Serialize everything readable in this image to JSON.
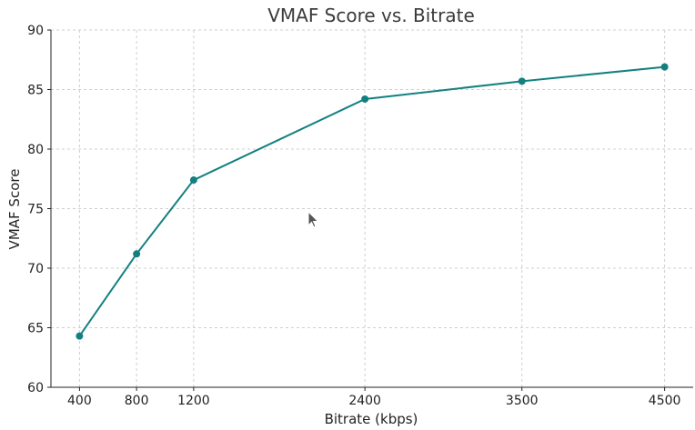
{
  "chart_data": {
    "type": "line",
    "title": "VMAF Score vs. Bitrate",
    "xlabel": "Bitrate (kbps)",
    "ylabel": "VMAF Score",
    "x": [
      400,
      800,
      1200,
      2400,
      3500,
      4500
    ],
    "xticks": [
      "400",
      "800",
      "1200",
      "2400",
      "3500",
      "4500"
    ],
    "yticks": [
      "60",
      "65",
      "70",
      "75",
      "80",
      "85",
      "90"
    ],
    "ylim": [
      60,
      90
    ],
    "xlim": [
      200,
      4700
    ],
    "grid": true,
    "series": [
      {
        "values": [
          64.3,
          71.2,
          77.4,
          84.2,
          85.7,
          86.9
        ],
        "color": "#138080"
      }
    ],
    "cursor_icon": "arrow-cursor-icon"
  }
}
